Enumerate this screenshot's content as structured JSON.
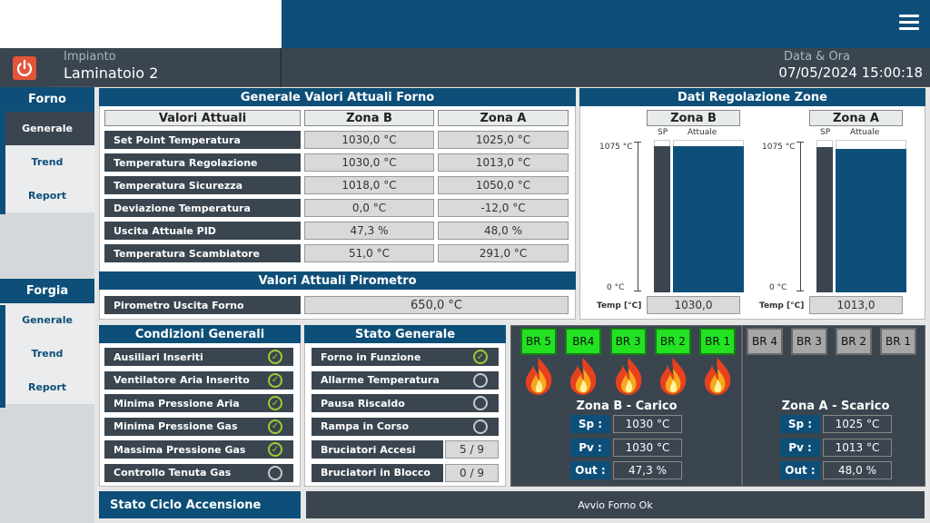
{
  "header": {
    "plant_label": "Impianto",
    "plant_name": "Laminatoio 2",
    "datetime_label": "Data & Ora",
    "datetime": "07/05/2024 15:00:18"
  },
  "sidebar": {
    "sections": [
      {
        "title": "Forno",
        "items": [
          "Generale",
          "Trend",
          "Report"
        ]
      },
      {
        "title": "Forgia",
        "items": [
          "Generale",
          "Trend",
          "Report"
        ]
      }
    ]
  },
  "values_panel": {
    "title": "Generale Valori Attuali Forno",
    "columns": [
      "Valori Attuali",
      "Zona B",
      "Zona A"
    ],
    "rows": [
      {
        "label": "Set Point Temperatura",
        "b": "1030,0 °C",
        "a": "1025,0 °C"
      },
      {
        "label": "Temperatura Regolazione",
        "b": "1030,0 °C",
        "a": "1013,0 °C"
      },
      {
        "label": "Temperatura Sicurezza",
        "b": "1018,0 °C",
        "a": "1050,0 °C"
      },
      {
        "label": "Deviazione Temperatura",
        "b": "0,0 °C",
        "a": "-12,0 °C"
      },
      {
        "label": "Uscita Attuale PID",
        "b": "47,3 %",
        "a": "48,0 %"
      },
      {
        "label": "Temperatura Scambiatore",
        "b": "51,0 °C",
        "a": "291,0 °C"
      }
    ]
  },
  "pyro_panel": {
    "title": "Valori Attuali Pirometro",
    "label": "Pirometro Uscita Forno",
    "value": "650,0 °C"
  },
  "zones_panel": {
    "title": "Dati Regolazione Zone",
    "zones": [
      {
        "name": "Zona B",
        "sp_label": "SP",
        "act_label": "Attuale",
        "max": "1075 °C",
        "min": "0 °C",
        "temp_label": "Temp [°C]",
        "value": "1030,0",
        "sp_level": 0.958,
        "act_level": 0.958
      },
      {
        "name": "Zona A",
        "sp_label": "SP",
        "act_label": "Attuale",
        "max": "1075 °C",
        "min": "0 °C",
        "temp_label": "Temp [°C]",
        "value": "1013,0",
        "sp_level": 0.953,
        "act_level": 0.942
      }
    ]
  },
  "conditions": {
    "title": "Condizioni Generali",
    "items": [
      {
        "label": "Ausiliari Inseriti",
        "state": "ok"
      },
      {
        "label": "Ventilatore Aria Inserito",
        "state": "ok"
      },
      {
        "label": "Minima Pressione Aria",
        "state": "ok"
      },
      {
        "label": "Minima Pressione Gas",
        "state": "ok"
      },
      {
        "label": "Massima Pressione Gas",
        "state": "ok"
      },
      {
        "label": "Controllo Tenuta Gas",
        "state": "off"
      }
    ]
  },
  "status": {
    "title": "Stato Generale",
    "items": [
      {
        "label": "Forno in Funzione",
        "state": "ok"
      },
      {
        "label": "Allarme Temperatura",
        "state": "off"
      },
      {
        "label": "Pausa Riscaldo",
        "state": "off"
      },
      {
        "label": "Rampa in Corso",
        "state": "off"
      },
      {
        "label": "Bruciatori Accesi",
        "value": "5 / 9"
      },
      {
        "label": "Bruciatori in Blocco",
        "value": "0 / 9"
      }
    ]
  },
  "burners_b": {
    "title": "Zona B - Carico",
    "burners": [
      "BR 5",
      "BR4",
      "BR 3",
      "BR 2",
      "BR 1"
    ],
    "rows": [
      {
        "label": "Sp :",
        "value": "1030 °C"
      },
      {
        "label": "Pv :",
        "value": "1030 °C"
      },
      {
        "label": "Out :",
        "value": "47,3 %"
      }
    ]
  },
  "burners_a": {
    "title": "Zona A - Scarico",
    "burners": [
      "BR 4",
      "BR 3",
      "BR 2",
      "BR 1"
    ],
    "rows": [
      {
        "label": "Sp :",
        "value": "1025 °C"
      },
      {
        "label": "Pv :",
        "value": "1013 °C"
      },
      {
        "label": "Out :",
        "value": "48,0 %"
      }
    ]
  },
  "cycle": {
    "title": "Stato Ciclo Accensione",
    "message": "Avvio Forno Ok"
  },
  "colors": {
    "primary": "#0d4f78",
    "dark": "#3a4550",
    "ok": "#9acd32",
    "burner_on": "#22e222"
  }
}
